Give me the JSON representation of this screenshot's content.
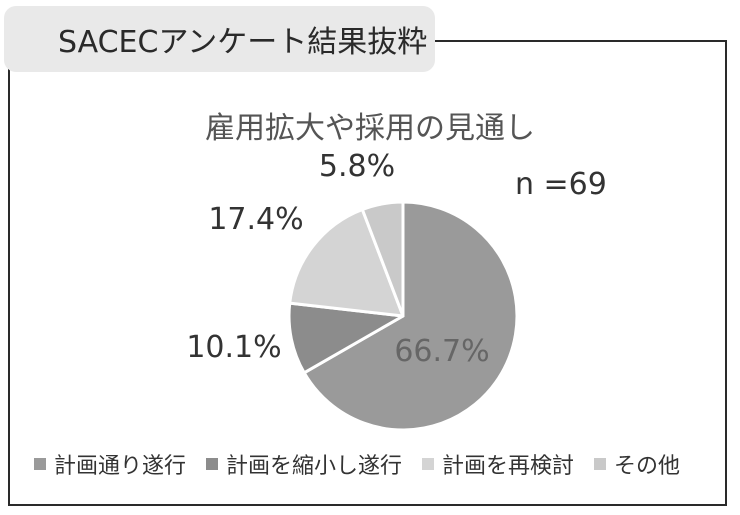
{
  "header": {
    "tag": "SACECアンケート結果抜粋"
  },
  "chart_data": {
    "type": "pie",
    "title": "雇用拡大や採用の見通し",
    "annotation": "n =69",
    "start_angle_deg": 0,
    "direction": "clockwise",
    "slices": [
      {
        "label": "計画通り遂行",
        "value": 66.7,
        "display": "66.7%",
        "color": "#9a9a9a"
      },
      {
        "label": "計画を縮小し遂行",
        "value": 10.1,
        "display": "10.1%",
        "color": "#8c8c8c"
      },
      {
        "label": "計画を再検討",
        "value": 17.4,
        "display": "17.4%",
        "color": "#d4d4d4"
      },
      {
        "label": "その他",
        "value": 5.8,
        "display": "5.8%",
        "color": "#c9c9c9"
      }
    ],
    "legend_position": "bottom"
  }
}
